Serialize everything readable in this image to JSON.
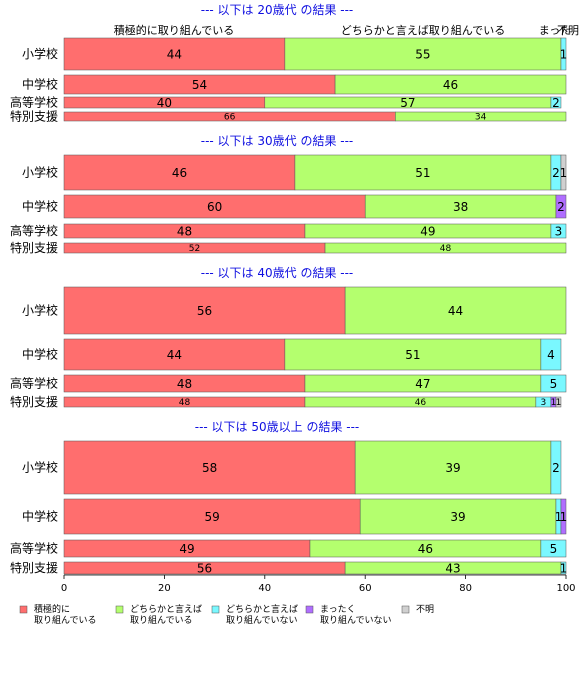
{
  "chart_data": {
    "type": "bar",
    "orientation": "horizontal-stacked-100",
    "xlim": [
      0,
      100
    ],
    "xticks": [
      "0",
      "20",
      "40",
      "60",
      "80",
      "100"
    ],
    "top_labels": [
      "積極的に取り組んでいる",
      "どちらかと言えば取り組んでいる",
      "まった",
      "不明"
    ],
    "legend": [
      {
        "line1": "積極的に",
        "line2": "取り組んでいる",
        "color": "#ff6e6e"
      },
      {
        "line1": "どちらかと言えば",
        "line2": "取り組んでいる",
        "color": "#b4ff6e"
      },
      {
        "line1": "どちらかと言えば",
        "line2": "取り組んでいない",
        "color": "#7af8ff"
      },
      {
        "line1": "まったく",
        "line2": "取り組んでいない",
        "color": "#b06eff"
      },
      {
        "line1": "不明",
        "line2": "",
        "color": "#d0d0d0"
      }
    ],
    "groups": [
      {
        "title": "--- 以下は 20歳代 の結果 ---",
        "rows": [
          {
            "category": "小学校",
            "values": [
              44,
              55,
              1,
              0,
              0
            ],
            "labels": [
              "44",
              "55",
              "1",
              "",
              ""
            ]
          },
          {
            "category": "中学校",
            "values": [
              54,
              46,
              0,
              0,
              0
            ],
            "labels": [
              "54",
              "46",
              "",
              "",
              ""
            ]
          },
          {
            "category": "高等学校",
            "values": [
              40,
              57,
              2,
              0,
              0
            ],
            "labels": [
              "40",
              "57",
              "2",
              "",
              ""
            ]
          },
          {
            "category": "特別支援",
            "values": [
              66,
              34,
              0,
              0,
              0
            ],
            "labels": [
              "66",
              "34",
              "",
              "",
              ""
            ]
          }
        ]
      },
      {
        "title": "--- 以下は 30歳代 の結果 ---",
        "rows": [
          {
            "category": "小学校",
            "values": [
              46,
              51,
              2,
              0,
              1
            ],
            "labels": [
              "46",
              "51",
              "2",
              "",
              "1"
            ]
          },
          {
            "category": "中学校",
            "values": [
              60,
              38,
              0,
              2,
              0
            ],
            "labels": [
              "60",
              "38",
              "",
              "2",
              ""
            ]
          },
          {
            "category": "高等学校",
            "values": [
              48,
              49,
              3,
              0,
              0
            ],
            "labels": [
              "48",
              "49",
              "3",
              "",
              ""
            ]
          },
          {
            "category": "特別支援",
            "values": [
              52,
              48,
              0,
              0,
              0
            ],
            "labels": [
              "52",
              "48",
              "",
              "",
              ""
            ]
          }
        ]
      },
      {
        "title": "--- 以下は 40歳代 の結果 ---",
        "rows": [
          {
            "category": "小学校",
            "values": [
              56,
              44,
              0,
              0,
              0
            ],
            "labels": [
              "56",
              "44",
              "",
              "",
              ""
            ]
          },
          {
            "category": "中学校",
            "values": [
              44,
              51,
              4,
              0,
              0
            ],
            "labels": [
              "44",
              "51",
              "4",
              "",
              ""
            ]
          },
          {
            "category": "高等学校",
            "values": [
              48,
              47,
              5,
              0,
              0
            ],
            "labels": [
              "48",
              "47",
              "5",
              "",
              ""
            ]
          },
          {
            "category": "特別支援",
            "values": [
              48,
              46,
              3,
              1,
              1
            ],
            "labels": [
              "48",
              "46",
              "3",
              "1",
              "1"
            ]
          }
        ]
      },
      {
        "title": "--- 以下は 50歳以上 の結果 ---",
        "rows": [
          {
            "category": "小学校",
            "values": [
              58,
              39,
              2,
              0,
              0
            ],
            "labels": [
              "58",
              "39",
              "2",
              "",
              ""
            ]
          },
          {
            "category": "中学校",
            "values": [
              59,
              39,
              1,
              1,
              0
            ],
            "labels": [
              "59",
              "39",
              "1",
              "1",
              ""
            ]
          },
          {
            "category": "高等学校",
            "values": [
              49,
              46,
              5,
              0,
              0
            ],
            "labels": [
              "49",
              "46",
              "5",
              "",
              ""
            ]
          },
          {
            "category": "特別支援",
            "values": [
              56,
              43,
              1,
              0,
              0
            ],
            "labels": [
              "56",
              "43",
              "1",
              "",
              ""
            ]
          }
        ]
      }
    ]
  }
}
